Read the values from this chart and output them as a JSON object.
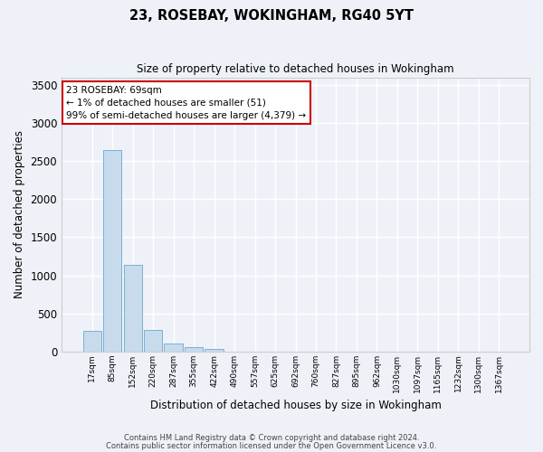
{
  "title": "23, ROSEBAY, WOKINGHAM, RG40 5YT",
  "subtitle": "Size of property relative to detached houses in Wokingham",
  "xlabel": "Distribution of detached houses by size in Wokingham",
  "ylabel": "Number of detached properties",
  "bar_color": "#c8dbed",
  "bar_edge_color": "#7aafd4",
  "background_color": "#eef2f8",
  "grid_color": "#ffffff",
  "categories": [
    "17sqm",
    "85sqm",
    "152sqm",
    "220sqm",
    "287sqm",
    "355sqm",
    "422sqm",
    "490sqm",
    "557sqm",
    "625sqm",
    "692sqm",
    "760sqm",
    "827sqm",
    "895sqm",
    "962sqm",
    "1030sqm",
    "1097sqm",
    "1165sqm",
    "1232sqm",
    "1300sqm",
    "1367sqm"
  ],
  "values": [
    270,
    2640,
    1140,
    280,
    100,
    60,
    35,
    0,
    0,
    0,
    0,
    0,
    0,
    0,
    0,
    0,
    0,
    0,
    0,
    0,
    0
  ],
  "ylim": [
    0,
    3600
  ],
  "yticks": [
    0,
    500,
    1000,
    1500,
    2000,
    2500,
    3000,
    3500
  ],
  "annotation_text": "23 ROSEBAY: 69sqm\n← 1% of detached houses are smaller (51)\n99% of semi-detached houses are larger (4,379) →",
  "annotation_box_color": "#ffffff",
  "annotation_border_color": "#cc0000",
  "footer_line1": "Contains HM Land Registry data © Crown copyright and database right 2024.",
  "footer_line2": "Contains public sector information licensed under the Open Government Licence v3.0.",
  "figsize": [
    6.0,
    5.0
  ],
  "dpi": 100
}
